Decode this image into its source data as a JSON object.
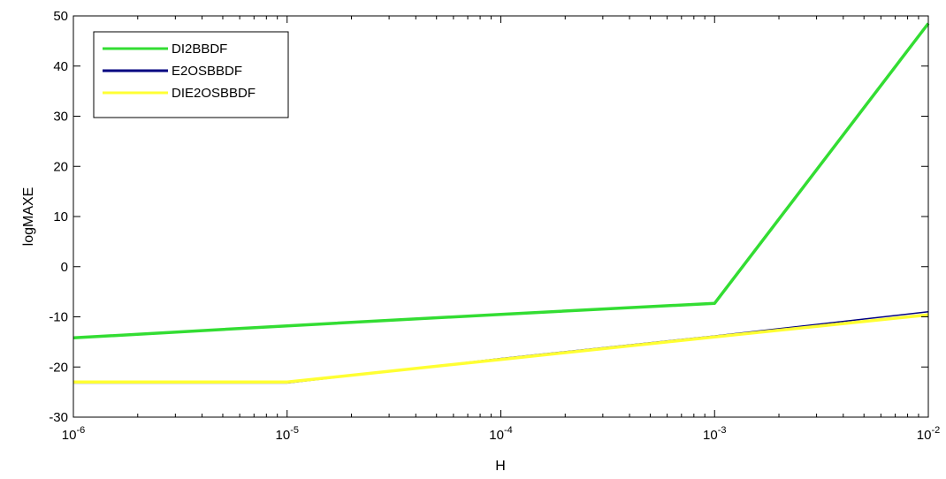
{
  "chart_data": {
    "type": "line",
    "xlabel": "H",
    "ylabel": "logMAXE",
    "xscale": "log",
    "xlim": [
      1e-06,
      0.01
    ],
    "ylim": [
      -30,
      50
    ],
    "x_ticks": [
      {
        "value": 1e-06,
        "base": "10",
        "exp": "-6"
      },
      {
        "value": 1e-05,
        "base": "10",
        "exp": "-5"
      },
      {
        "value": 0.0001,
        "base": "10",
        "exp": "-4"
      },
      {
        "value": 0.001,
        "base": "10",
        "exp": "-3"
      },
      {
        "value": 0.01,
        "base": "10",
        "exp": "-2"
      }
    ],
    "y_ticks": [
      50,
      40,
      30,
      20,
      10,
      0,
      -10,
      -20,
      -30
    ],
    "grid": false,
    "legend_position": "top-left",
    "series": [
      {
        "name": "DI2BBDF",
        "color": "#33dd33",
        "x": [
          1e-06,
          1e-05,
          0.0001,
          0.001,
          0.01
        ],
        "y": [
          -14.2,
          -11.8,
          -9.5,
          -7.3,
          48.5
        ]
      },
      {
        "name": "E2OSBBDF",
        "color": "#000080",
        "x": [
          1e-06,
          1e-05,
          0.0001,
          0.001,
          0.01
        ],
        "y": [
          -23.2,
          -23.2,
          -18.3,
          -13.8,
          -9.0
        ]
      },
      {
        "name": "DIE2OSBBDF",
        "color": "#ffff33",
        "x": [
          1e-06,
          1e-05,
          0.0001,
          0.001,
          0.01
        ],
        "y": [
          -23.0,
          -23.0,
          -18.5,
          -14.0,
          -9.6
        ]
      }
    ]
  }
}
